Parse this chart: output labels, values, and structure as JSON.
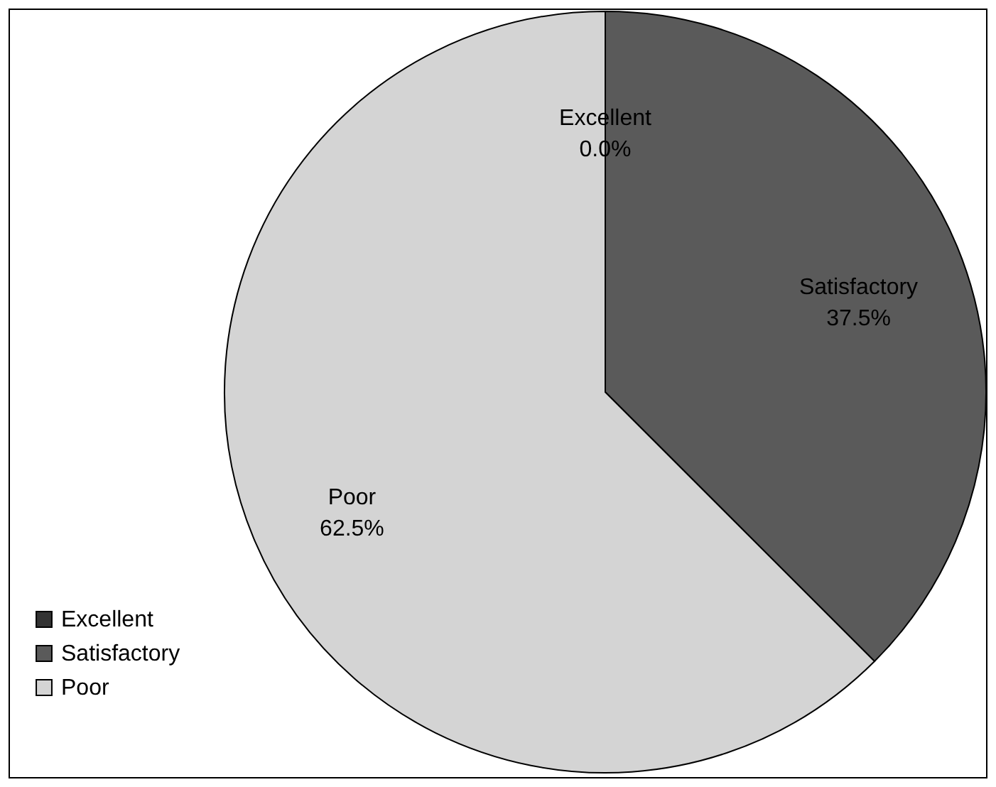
{
  "chart_data": {
    "type": "pie",
    "categories": [
      "Excellent",
      "Satisfactory",
      "Poor"
    ],
    "values": [
      0.0,
      37.5,
      62.5
    ],
    "colors": [
      "#333333",
      "#5a5a5a",
      "#d4d4d4"
    ],
    "value_labels": [
      "0.0%",
      "37.5%",
      "62.5%"
    ],
    "legend": "bottom left"
  }
}
